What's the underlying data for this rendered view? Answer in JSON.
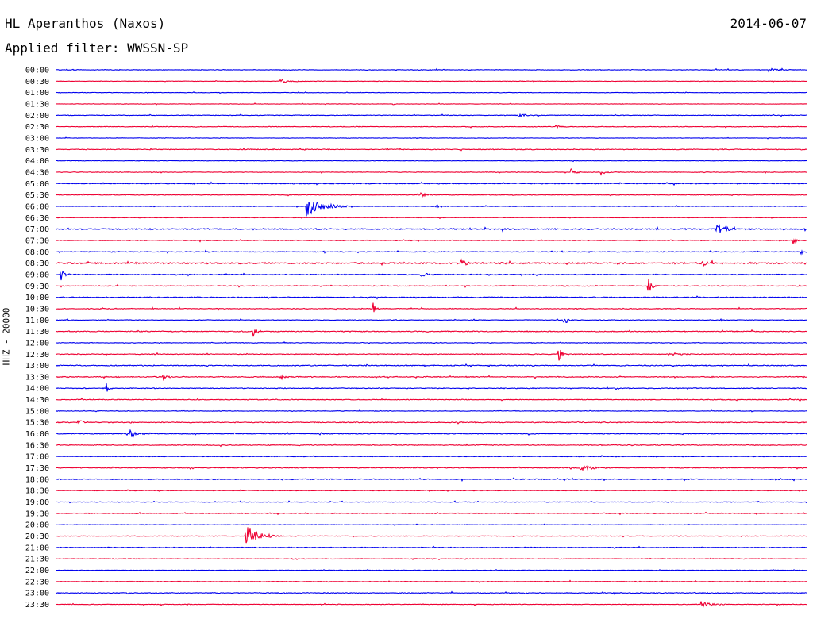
{
  "header": {
    "station": "HL Aperanthos (Naxos)",
    "date": "2014-06-07",
    "filter_text": "Applied filter: WWSSN-SP"
  },
  "colors": {
    "trace_a": "#0000ee",
    "trace_b": "#ee0033",
    "text": "#000000"
  },
  "chart_data": {
    "type": "line",
    "title": "HL Aperanthos (Naxos)",
    "subtitle": "Applied filter: WWSSN-SP",
    "ylabel": "HHZ - 20000",
    "xlabel": "",
    "rows": [
      "00:00",
      "00:30",
      "01:00",
      "01:30",
      "02:00",
      "02:30",
      "03:00",
      "03:30",
      "04:00",
      "04:30",
      "05:00",
      "05:30",
      "06:00",
      "06:30",
      "07:00",
      "07:30",
      "08:00",
      "08:30",
      "09:00",
      "09:30",
      "10:00",
      "10:30",
      "11:00",
      "11:30",
      "12:00",
      "12:30",
      "13:00",
      "13:30",
      "14:00",
      "14:30",
      "15:00",
      "15:30",
      "16:00",
      "16:30",
      "17:00",
      "17:30",
      "18:00",
      "18:30",
      "19:00",
      "19:30",
      "20:00",
      "20:30",
      "21:00",
      "21:30",
      "22:00",
      "22:30",
      "23:00",
      "23:30"
    ],
    "row_minutes": 30,
    "noise": [
      0.4,
      0.3,
      0.3,
      0.3,
      0.4,
      0.4,
      0.3,
      0.5,
      0.3,
      0.4,
      0.6,
      0.4,
      0.4,
      0.3,
      0.8,
      0.5,
      0.5,
      1.0,
      0.6,
      0.5,
      0.6,
      0.5,
      0.4,
      0.6,
      0.4,
      0.5,
      0.6,
      0.6,
      0.5,
      0.5,
      0.4,
      0.6,
      0.5,
      0.5,
      0.4,
      0.5,
      0.6,
      0.4,
      0.4,
      0.5,
      0.3,
      0.4,
      0.5,
      0.4,
      0.3,
      0.4,
      0.5,
      0.4
    ],
    "events": [
      {
        "row": 0,
        "minute": 28.5,
        "amplitude": 2,
        "duration": 1.2
      },
      {
        "row": 1,
        "minute": 9.0,
        "amplitude": 2.5,
        "duration": 1.0
      },
      {
        "row": 4,
        "minute": 18.5,
        "amplitude": 1.5,
        "duration": 1.0
      },
      {
        "row": 5,
        "minute": 20.0,
        "amplitude": 1.5,
        "duration": 0.6
      },
      {
        "row": 9,
        "minute": 20.6,
        "amplitude": 4,
        "duration": 0.4
      },
      {
        "row": 9,
        "minute": 21.8,
        "amplitude": 4,
        "duration": 0.4
      },
      {
        "row": 11,
        "minute": 14.6,
        "amplitude": 3,
        "duration": 0.5
      },
      {
        "row": 12,
        "minute": 10.0,
        "amplitude": 12,
        "duration": 1.8
      },
      {
        "row": 12,
        "minute": 15.2,
        "amplitude": 3,
        "duration": 0.6
      },
      {
        "row": 14,
        "minute": 26.4,
        "amplitude": 10,
        "duration": 0.8
      },
      {
        "row": 15,
        "minute": 29.5,
        "amplitude": 4,
        "duration": 0.3
      },
      {
        "row": 16,
        "minute": 29.8,
        "amplitude": 3,
        "duration": 0.4
      },
      {
        "row": 17,
        "minute": 16.2,
        "amplitude": 6,
        "duration": 0.4
      },
      {
        "row": 17,
        "minute": 25.8,
        "amplitude": 5,
        "duration": 0.4
      },
      {
        "row": 18,
        "minute": 0.2,
        "amplitude": 7,
        "duration": 0.4
      },
      {
        "row": 18,
        "minute": 14.6,
        "amplitude": 3,
        "duration": 0.6
      },
      {
        "row": 19,
        "minute": 23.7,
        "amplitude": 9,
        "duration": 0.4
      },
      {
        "row": 21,
        "minute": 12.7,
        "amplitude": 7,
        "duration": 0.3
      },
      {
        "row": 22,
        "minute": 20.3,
        "amplitude": 7,
        "duration": 0.4
      },
      {
        "row": 23,
        "minute": 7.9,
        "amplitude": 11,
        "duration": 0.3
      },
      {
        "row": 25,
        "minute": 20.1,
        "amplitude": 8,
        "duration": 0.4
      },
      {
        "row": 25,
        "minute": 24.5,
        "amplitude": 3,
        "duration": 0.8
      },
      {
        "row": 27,
        "minute": 4.3,
        "amplitude": 4,
        "duration": 0.4
      },
      {
        "row": 27,
        "minute": 9.0,
        "amplitude": 3,
        "duration": 0.4
      },
      {
        "row": 28,
        "minute": 2.0,
        "amplitude": 6,
        "duration": 0.4
      },
      {
        "row": 31,
        "minute": 0.9,
        "amplitude": 4,
        "duration": 0.5
      },
      {
        "row": 32,
        "minute": 3.0,
        "amplitude": 6,
        "duration": 0.6
      },
      {
        "row": 35,
        "minute": 21.0,
        "amplitude": 4,
        "duration": 1.2
      },
      {
        "row": 41,
        "minute": 7.6,
        "amplitude": 14,
        "duration": 1.4
      },
      {
        "row": 47,
        "minute": 25.8,
        "amplitude": 4,
        "duration": 1.0
      }
    ]
  }
}
